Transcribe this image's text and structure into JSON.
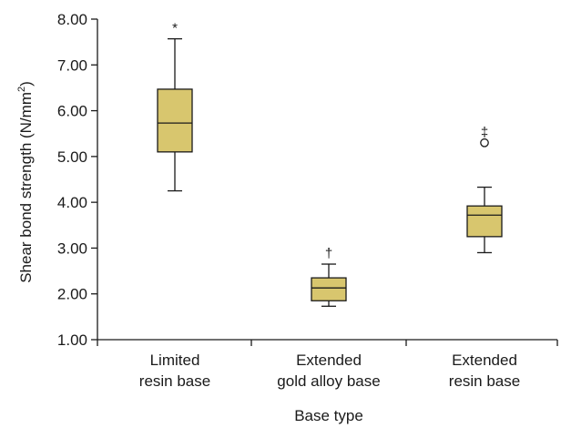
{
  "chart_data": {
    "type": "box",
    "xlabel": "Base type",
    "ylabel": "Shear bond strength (N/mm²)",
    "ylabel_main": "Shear bond strength (N/mm",
    "ylabel_sup": "2",
    "ylabel_close": ")",
    "ylim": [
      1.0,
      8.0
    ],
    "yticks": [
      "1.00",
      "2.00",
      "3.00",
      "4.00",
      "5.00",
      "6.00",
      "7.00",
      "8.00"
    ],
    "grid": false,
    "box_color": "#d8c66e",
    "categories": [
      {
        "lines": [
          "Limited",
          "resin base"
        ]
      },
      {
        "lines": [
          "Extended",
          "gold alloy base"
        ]
      },
      {
        "lines": [
          "Extended",
          "resin base"
        ]
      }
    ],
    "boxes": [
      {
        "min": 4.25,
        "q1": 5.1,
        "median": 5.73,
        "q3": 6.47,
        "max": 7.57,
        "outliers": [],
        "marker": "*"
      },
      {
        "min": 1.73,
        "q1": 1.85,
        "median": 2.13,
        "q3": 2.35,
        "max": 2.65,
        "outliers": [],
        "marker": "†"
      },
      {
        "min": 2.9,
        "q1": 3.25,
        "median": 3.72,
        "q3": 3.92,
        "max": 4.33,
        "outliers": [
          5.3
        ],
        "marker": "‡"
      }
    ]
  }
}
